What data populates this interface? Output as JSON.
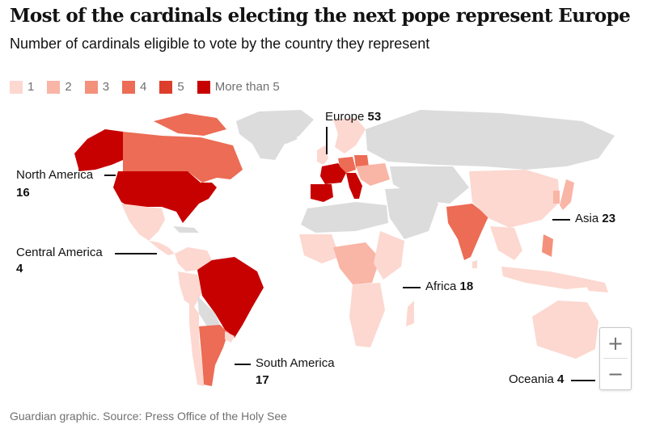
{
  "title": "Most of the cardinals electing the next pope represent Europe",
  "subtitle": "Number of cardinals eligible to vote by the country they represent",
  "legend": [
    {
      "label": "1",
      "color": "#fcd8d0"
    },
    {
      "label": "2",
      "color": "#f9b5a6"
    },
    {
      "label": "3",
      "color": "#f3917b"
    },
    {
      "label": "4",
      "color": "#ec6c55"
    },
    {
      "label": "5",
      "color": "#dd3e2c"
    },
    {
      "label": "More than 5",
      "color": "#c70000"
    }
  ],
  "colors": {
    "land_no_data": "#dcdcdc",
    "water": "#ffffff",
    "text": "#121212",
    "muted": "#707070"
  },
  "regions": [
    {
      "name": "Europe",
      "count": "53"
    },
    {
      "name": "North America",
      "count": "16"
    },
    {
      "name": "Asia",
      "count": "23"
    },
    {
      "name": "Central America",
      "count": "4"
    },
    {
      "name": "Africa",
      "count": "18"
    },
    {
      "name": "South America",
      "count": "17"
    },
    {
      "name": "Oceania",
      "count": "4"
    }
  ],
  "zoom": {
    "in_label": "+",
    "out_label": "−"
  },
  "source": "Guardian graphic. Source: Press Office of the Holy See"
}
